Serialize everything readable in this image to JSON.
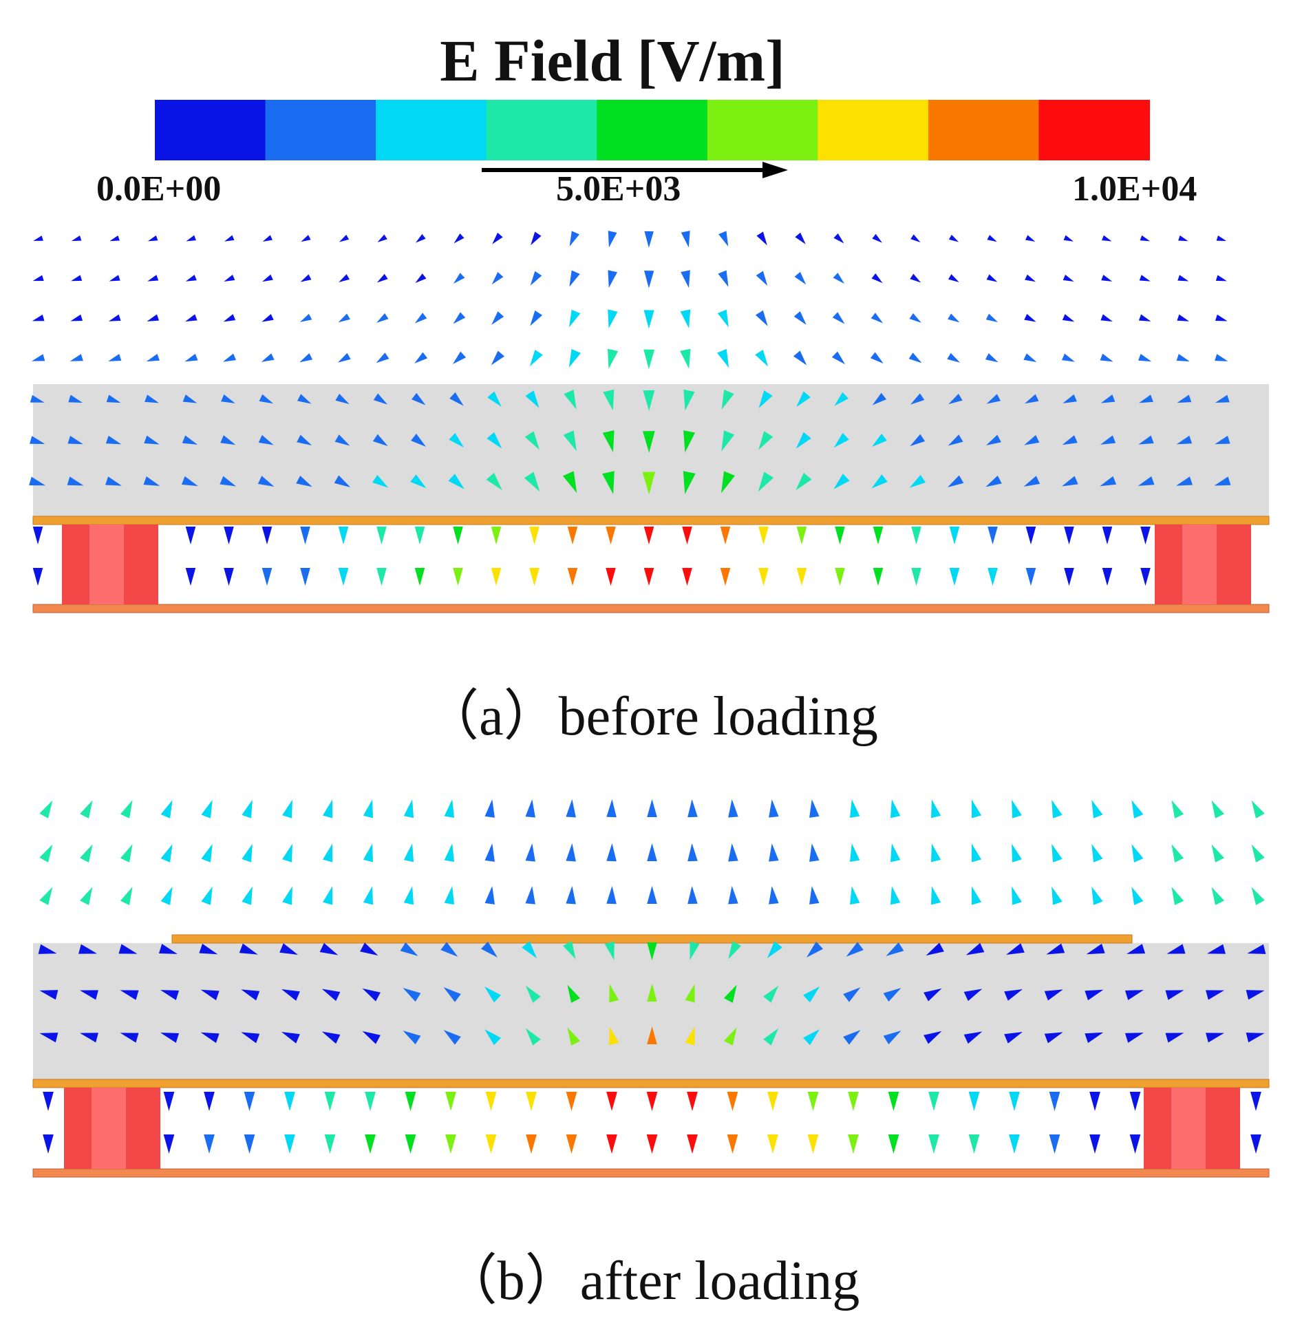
{
  "legend": {
    "title": "E Field [V/m]",
    "colors": [
      "#0a14e6",
      "#1a6cf0",
      "#00d8f4",
      "#1ee8a8",
      "#00e020",
      "#7cf010",
      "#fce000",
      "#fa7800",
      "#fc0c0c"
    ],
    "tick_min": "0.0E+00",
    "tick_mid": "5.0E+03",
    "tick_max": "1.0E+04",
    "min_value": 0,
    "max_value": 10000
  },
  "panels": [
    {
      "caption": "（a）before loading"
    },
    {
      "caption": "（b）after loading"
    }
  ]
}
